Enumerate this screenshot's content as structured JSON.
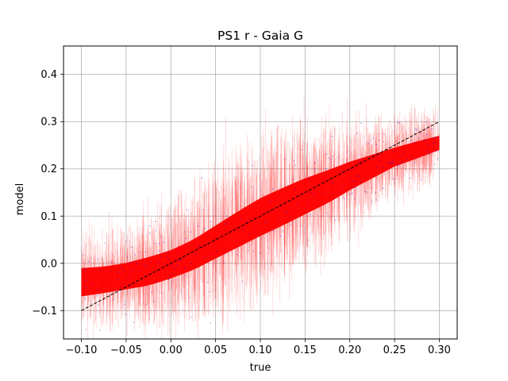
{
  "chart_data": {
    "type": "scatter",
    "title": "PS1 r - Gaia G",
    "xlabel": "true",
    "ylabel": "model",
    "xlim": [
      -0.12,
      0.32
    ],
    "ylim": [
      -0.16,
      0.46
    ],
    "xticks": [
      "−0.10",
      "−0.05",
      "0.00",
      "0.05",
      "0.10",
      "0.15",
      "0.20",
      "0.25",
      "0.30"
    ],
    "xtick_values": [
      -0.1,
      -0.05,
      0.0,
      0.05,
      0.1,
      0.15,
      0.2,
      0.25,
      0.3
    ],
    "yticks": [
      "−0.1",
      "0.0",
      "0.1",
      "0.2",
      "0.3",
      "0.4"
    ],
    "ytick_values": [
      -0.1,
      0.0,
      0.1,
      0.2,
      0.3,
      0.4
    ],
    "grid": true,
    "reference_line": {
      "x": [
        -0.1,
        0.3
      ],
      "y": [
        -0.1,
        0.3
      ],
      "style": "dashed",
      "color": "#000000"
    },
    "trend_band": {
      "x": [
        -0.1,
        -0.075,
        -0.05,
        -0.025,
        0.0,
        0.025,
        0.05,
        0.075,
        0.1,
        0.125,
        0.15,
        0.175,
        0.2,
        0.225,
        0.25,
        0.275,
        0.3
      ],
      "y_center": [
        -0.04,
        -0.035,
        -0.027,
        -0.017,
        -0.002,
        0.018,
        0.045,
        0.072,
        0.098,
        0.12,
        0.142,
        0.162,
        0.185,
        0.205,
        0.225,
        0.24,
        0.255
      ],
      "core_halfwidth": [
        0.03,
        0.028,
        0.028,
        0.03,
        0.03,
        0.032,
        0.035,
        0.038,
        0.04,
        0.04,
        0.038,
        0.035,
        0.03,
        0.025,
        0.02,
        0.018,
        0.015
      ],
      "errorbar_halfwidth": [
        0.05,
        0.05,
        0.06,
        0.07,
        0.08,
        0.09,
        0.1,
        0.1,
        0.1,
        0.1,
        0.09,
        0.08,
        0.07,
        0.06,
        0.05,
        0.05,
        0.04
      ]
    },
    "colors": {
      "errorbars": "#ff0000",
      "points": "#0000ff",
      "reference_line": "#000000",
      "grid": "#b0b0b0"
    }
  }
}
